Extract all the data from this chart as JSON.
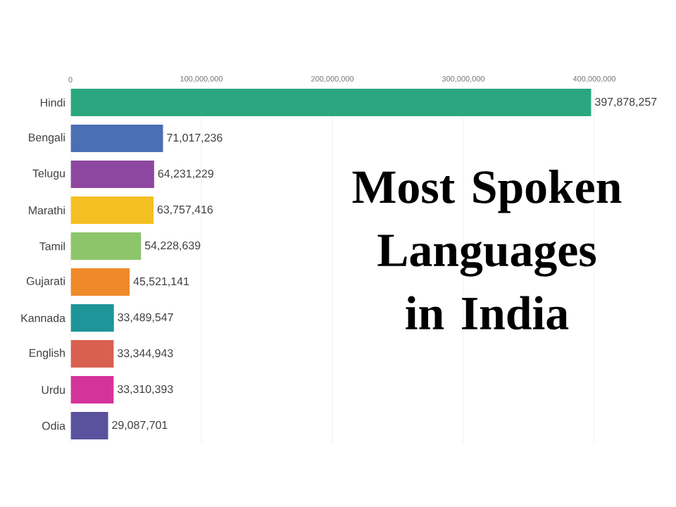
{
  "chart_data": {
    "type": "bar",
    "orientation": "horizontal",
    "title": "Most Spoken Languages in India",
    "categories": [
      "Hindi",
      "Bengali",
      "Telugu",
      "Marathi",
      "Tamil",
      "Gujarati",
      "Kannada",
      "English",
      "Urdu",
      "Odia"
    ],
    "values": [
      397878257,
      71017236,
      64231229,
      63757416,
      54228639,
      45521141,
      33489547,
      33344943,
      33310393,
      29087701
    ],
    "colors": [
      "#2aa77f",
      "#4a6fb5",
      "#8d47a0",
      "#f4bf22",
      "#8cc56a",
      "#ee8a2a",
      "#1e9598",
      "#d9604f",
      "#d5339c",
      "#5a529c"
    ],
    "value_labels": [
      "397,878,257",
      "71,017,236",
      "64,231,229",
      "63,757,416",
      "54,228,639",
      "45,521,141",
      "33,489,547",
      "33,344,943",
      "33,310,393",
      "29,087,701"
    ],
    "xlim": [
      0,
      400000000
    ],
    "xticks": [
      0,
      {
        "value": 100000000,
        "label": "100,000,000"
      },
      {
        "value": 200000000,
        "label": "200,000,000"
      },
      {
        "value": 300000000,
        "label": "300,000,000"
      },
      {
        "value": 400000000,
        "label": "400,000,000"
      }
    ],
    "grid": "x"
  }
}
